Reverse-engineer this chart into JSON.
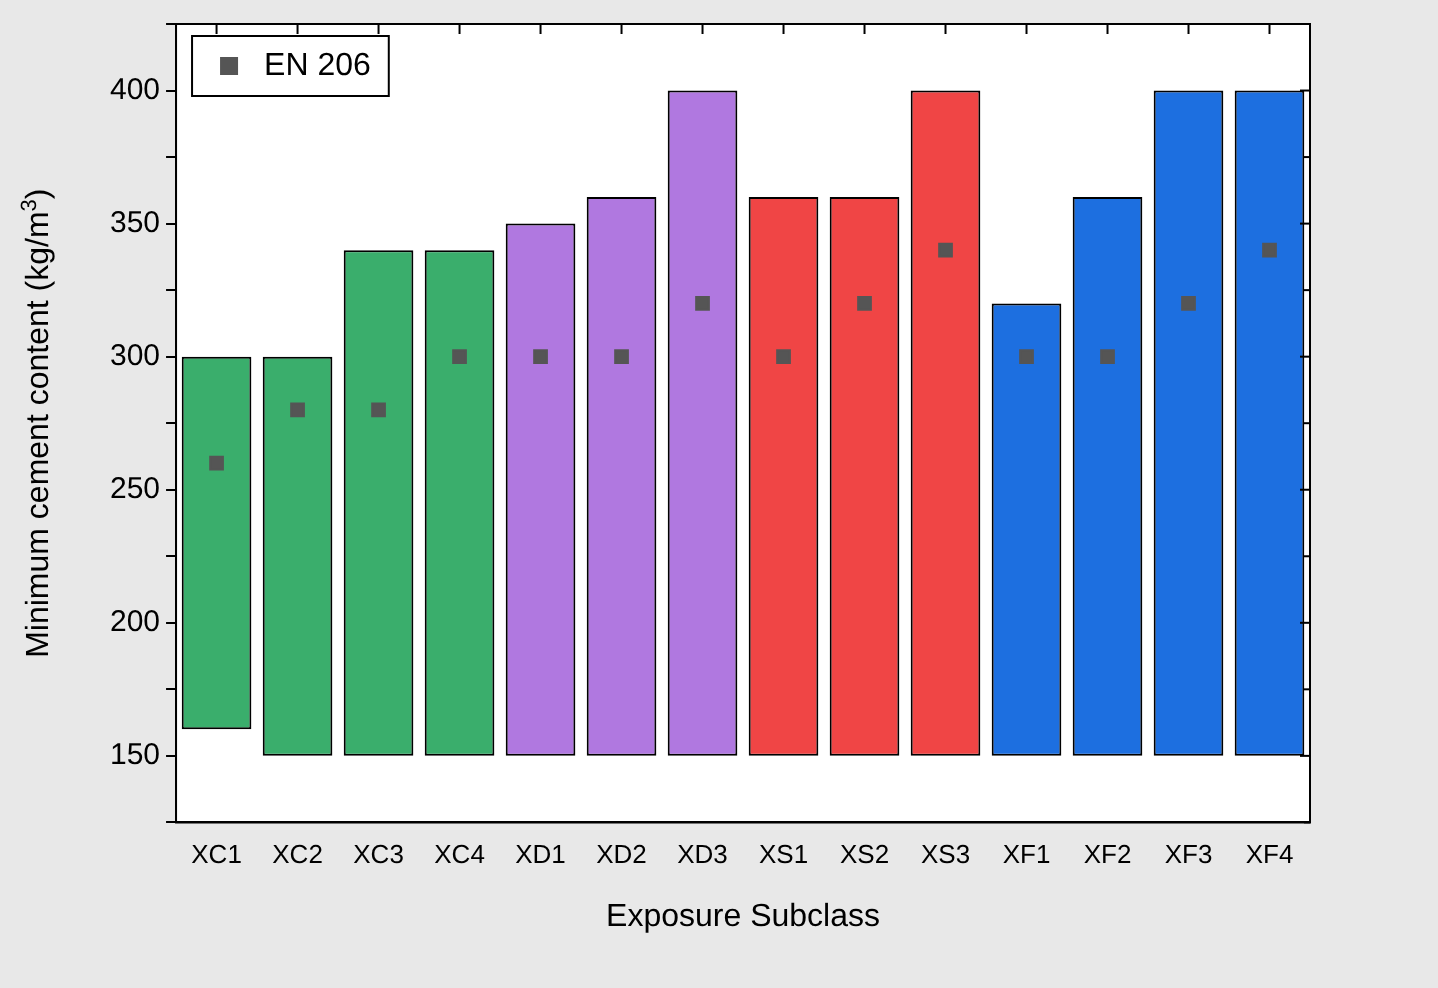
{
  "chart_data": {
    "type": "bar",
    "xlabel": "Exposure Subclass",
    "ylabel": "Minimum cement content (kg/m$^{3}$)",
    "categories": [
      "XC1",
      "XC2",
      "XC3",
      "XC4",
      "XD1",
      "XD2",
      "XD3",
      "XS1",
      "XS2",
      "XS3",
      "XF1",
      "XF2",
      "XF3",
      "XF4"
    ],
    "series": [
      {
        "base": [
          160,
          150,
          150,
          150,
          150,
          150,
          150,
          150,
          150,
          150,
          150,
          150,
          150,
          150
        ],
        "colors": [
          "#3aae6c",
          "#3aae6c",
          "#3aae6c",
          "#3aae6c",
          "#b078e0",
          "#b078e0",
          "#b078e0",
          "#f04545",
          "#f04545",
          "#f04545",
          "#1d6fe0",
          "#1d6fe0",
          "#1d6fe0",
          "#1d6fe0"
        ],
        "values": [
          140,
          150,
          190,
          190,
          200,
          210,
          250,
          210,
          210,
          250,
          170,
          210,
          250,
          250
        ]
      },
      {
        "type": "scatter",
        "name": "EN 206",
        "color": "#555555",
        "values": [
          260,
          280,
          280,
          300,
          300,
          300,
          320,
          300,
          320,
          340,
          300,
          300,
          320,
          340
        ]
      }
    ],
    "ylim": [
      125,
      425
    ],
    "yticks": [
      {
        "value": 125,
        "label": null
      },
      150,
      {
        "value": 175,
        "label": null
      },
      200,
      {
        "value": 225,
        "label": null
      },
      250,
      {
        "value": 275,
        "label": null
      },
      300,
      {
        "value": 325,
        "label": null
      },
      350,
      {
        "value": 375,
        "label": null
      },
      400,
      {
        "value": 425,
        "label": null
      }
    ],
    "marker": "square",
    "legend": "top left",
    "grid": false
  }
}
